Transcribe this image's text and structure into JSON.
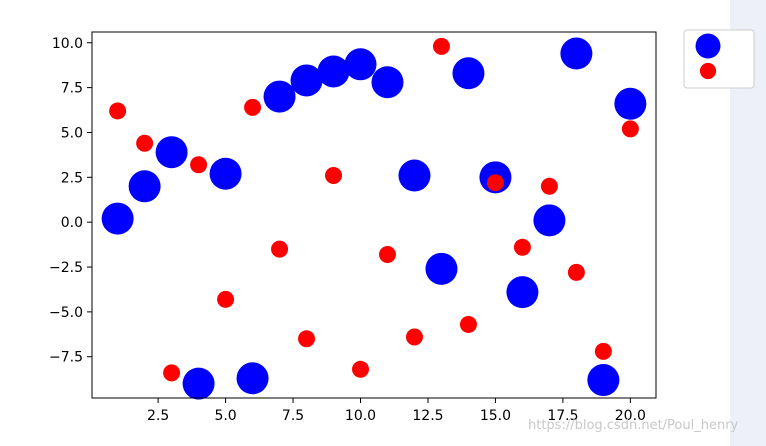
{
  "chart_data": {
    "type": "scatter",
    "title": "",
    "xlabel": "",
    "ylabel": "",
    "xlim": [
      0.05,
      20.95
    ],
    "ylim": [
      -9.8,
      10.6
    ],
    "x_ticks": [
      2.5,
      5.0,
      7.5,
      10.0,
      12.5,
      15.0,
      17.5,
      20.0
    ],
    "x_tick_labels": [
      "2.5",
      "5.0",
      "7.5",
      "10.0",
      "12.5",
      "15.0",
      "17.5",
      "20.0"
    ],
    "y_ticks": [
      -7.5,
      -5.0,
      -2.5,
      0.0,
      2.5,
      5.0,
      7.5,
      10.0
    ],
    "y_tick_labels": [
      "−7.5",
      "−5.0",
      "−2.5",
      "0.0",
      "2.5",
      "5.0",
      "7.5",
      "10.0"
    ],
    "grid": false,
    "legend_position": "outside-top-right",
    "series": [
      {
        "color": "#0000ff",
        "marker": "circle-large",
        "x": [
          1,
          2,
          3,
          4,
          5,
          6,
          7,
          8,
          9,
          10,
          11,
          12,
          13,
          14,
          15,
          16,
          17,
          18,
          19,
          20
        ],
        "y": [
          0.2,
          2.0,
          3.9,
          -9.0,
          2.7,
          -8.7,
          7.0,
          7.9,
          8.4,
          8.8,
          7.8,
          2.6,
          -2.6,
          8.3,
          2.5,
          -3.9,
          0.1,
          9.4,
          -8.8,
          6.6
        ]
      },
      {
        "color": "#ff0000",
        "marker": "circle-small",
        "x": [
          1,
          2,
          3,
          4,
          5,
          6,
          7,
          8,
          9,
          10,
          11,
          12,
          13,
          14,
          15,
          16,
          17,
          18,
          19,
          20
        ],
        "y": [
          6.2,
          4.4,
          -8.4,
          3.2,
          -4.3,
          6.4,
          -1.5,
          -6.5,
          2.6,
          -8.2,
          -1.8,
          -6.4,
          9.8,
          -5.7,
          2.2,
          -1.4,
          2.0,
          -2.8,
          -7.2,
          5.2
        ]
      }
    ]
  },
  "footer": {
    "watermark": "https://blog.csdn.net/Poul_henry"
  }
}
